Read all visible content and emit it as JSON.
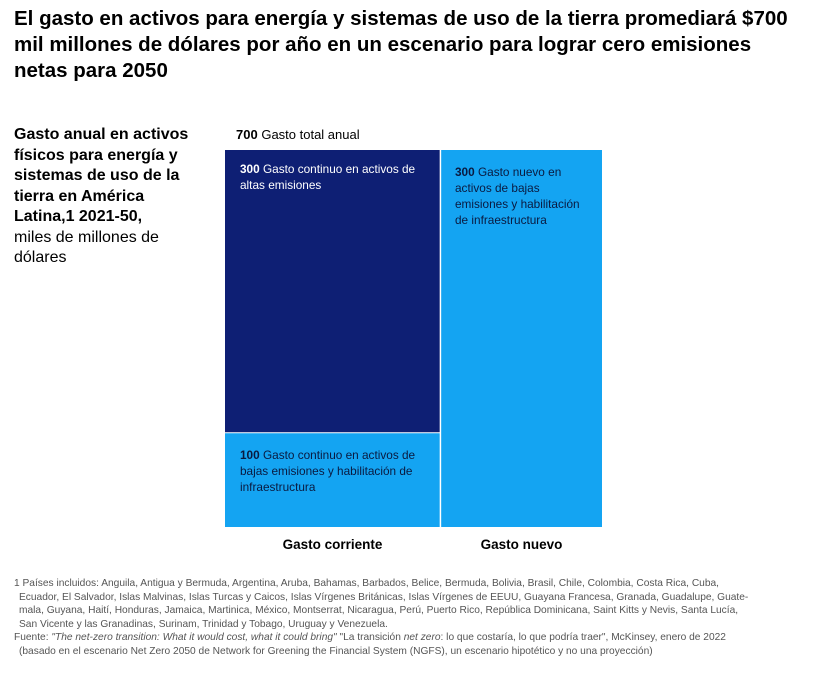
{
  "title": "El gasto en activos para energía y sistemas de uso de la tierra promediará $700 mil millones de dólares por año en un escenario para lograr cero emisiones netas para 2050",
  "side_label": {
    "bold": "Gasto anual en activos físicos para energía y sistemas de uso de la tierra en América Latina,1 2021-50,",
    "regular": "miles de millones de dólares"
  },
  "colors": {
    "dark_navy": "#0e1f74",
    "bright_blue": "#14a4f2"
  },
  "chart_data": {
    "type": "bar",
    "stacked": true,
    "categories": [
      "Gasto corriente",
      "Gasto nuevo"
    ],
    "total": {
      "value": 700,
      "label": "Gasto total anual"
    },
    "series": [
      {
        "value": 300,
        "label": "Gasto continuo en activos de altas emisiones",
        "category": "Gasto corriente",
        "color": "#0e1f74"
      },
      {
        "value": 100,
        "label": "Gasto continuo en activos de bajas emisiones y habilitación de infraestructura",
        "category": "Gasto corriente",
        "color": "#14a4f2"
      },
      {
        "value": 300,
        "label": "Gasto nuevo en activos de bajas emisiones y habilitación de infraestructura",
        "category": "Gasto nuevo",
        "color": "#14a4f2"
      }
    ]
  },
  "footnote": {
    "line1": "1 Países incluidos: Anguila, Antigua y Bermuda, Argentina, Aruba, Bahamas, Barbados, Belice, Bermuda, Bolivia, Brasil, Chile, Colombia, Costa Rica, Cuba,",
    "line2": "Ecuador, El Salvador, Islas Malvinas, Islas Turcas y Caicos, Islas Vírgenes Británicas, Islas Vírgenes de EEUU, Guayana Francesa, Granada, Guadalupe, Guate-",
    "line3": "mala, Guyana, Haití, Honduras, Jamaica, Martinica, México, Montserrat, Nicaragua, Perú, Puerto Rico, República Dominicana, Saint Kitts y Nevis, Santa Lucía,",
    "line4": "San Vicente y las Granadinas, Surinam, Trinidad y Tobago, Uruguay y Venezuela.",
    "source_prefix": "Fuente: ",
    "source_italic": "\"The net-zero transition: What it would cost, what it could bring\"",
    "source_mid1": " \"La transición ",
    "source_italic2": "net zero",
    "source_mid2": ": lo que costaría, lo que podría traer\", McKinsey, enero de 2022",
    "source_line2": "(basado en el escenario Net Zero 2050 de Network for Greening the Financial System (NGFS), un escenario hipotético y no una proyección)"
  }
}
